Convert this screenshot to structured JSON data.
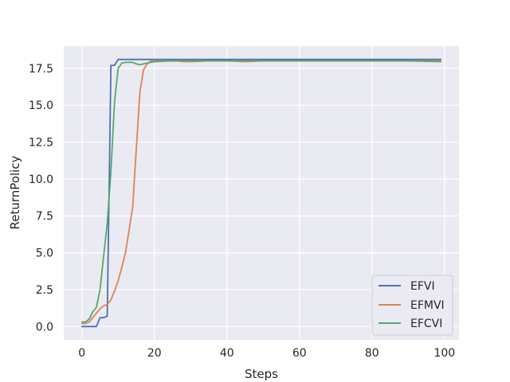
{
  "chart_data": {
    "type": "line",
    "xlabel": "Steps",
    "ylabel": "ReturnPolicy",
    "xlim": [
      -5,
      104
    ],
    "ylim": [
      -0.9,
      19.0
    ],
    "xticks": [
      0,
      20,
      40,
      60,
      80,
      100
    ],
    "xtick_labels": [
      "0",
      "20",
      "40",
      "60",
      "80",
      "100"
    ],
    "yticks": [
      0,
      2.5,
      5,
      7.5,
      10,
      12.5,
      15,
      17.5
    ],
    "ytick_labels": [
      "0.0",
      "2.5",
      "5.0",
      "7.5",
      "10.0",
      "12.5",
      "15.0",
      "17.5"
    ],
    "grid": true,
    "legend_position": "lower-right",
    "series": [
      {
        "name": "EFVI",
        "color": "#4c72b0",
        "x": [
          0,
          1,
          2,
          3,
          4,
          5,
          6,
          7,
          8,
          9,
          10,
          11,
          12,
          15,
          20,
          30,
          40,
          50,
          60,
          70,
          80,
          90,
          99
        ],
        "y": [
          0.0,
          0.0,
          0.0,
          0.0,
          0.0,
          0.6,
          0.6,
          0.7,
          17.7,
          17.7,
          18.1,
          18.1,
          18.1,
          18.1,
          18.1,
          18.1,
          18.1,
          18.1,
          18.1,
          18.1,
          18.1,
          18.1,
          18.1
        ]
      },
      {
        "name": "EFMVI",
        "color": "#dd8452",
        "x": [
          0,
          1,
          2,
          3,
          4,
          5,
          6,
          7,
          8,
          9,
          10,
          11,
          12,
          13,
          14,
          15,
          16,
          17,
          18,
          19,
          20,
          22,
          24,
          26,
          28,
          30,
          35,
          40,
          45,
          50,
          60,
          70,
          80,
          90,
          99
        ],
        "y": [
          0.2,
          0.2,
          0.3,
          0.6,
          0.9,
          1.2,
          1.4,
          1.5,
          1.8,
          2.4,
          3.1,
          4.0,
          5.0,
          6.5,
          8.1,
          12.0,
          15.9,
          17.4,
          17.8,
          18.0,
          18.0,
          18.0,
          18.0,
          18.0,
          17.95,
          17.95,
          18.0,
          18.0,
          17.95,
          18.0,
          18.0,
          18.0,
          18.0,
          18.0,
          18.0
        ]
      },
      {
        "name": "EFCVI",
        "color": "#55a868",
        "x": [
          0,
          1,
          2,
          3,
          4,
          5,
          6,
          7,
          8,
          9,
          10,
          11,
          12,
          13,
          14,
          15,
          16,
          17,
          18,
          19,
          20,
          25,
          30,
          40,
          50,
          60,
          70,
          80,
          90,
          99
        ],
        "y": [
          0.3,
          0.3,
          0.5,
          1.0,
          1.3,
          2.5,
          4.8,
          7.0,
          10.5,
          15.2,
          17.5,
          17.85,
          17.9,
          17.9,
          17.9,
          17.8,
          17.75,
          17.8,
          17.85,
          17.9,
          17.95,
          18.0,
          18.0,
          18.0,
          18.0,
          18.0,
          18.0,
          18.0,
          18.0,
          17.95
        ]
      }
    ]
  }
}
